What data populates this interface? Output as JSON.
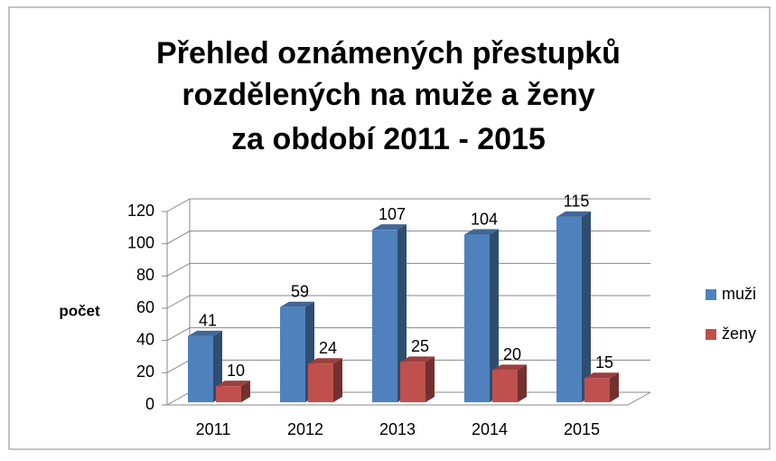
{
  "chart_data": {
    "type": "bar3d",
    "title": [
      "Přehled oznámených přestupků",
      "rozdělených na muže a ženy",
      "za období  2011 - 2015"
    ],
    "y_label": "počet",
    "categories": [
      "2011",
      "2012",
      "2013",
      "2014",
      "2015"
    ],
    "series": [
      {
        "name": "muži",
        "color": "#4f81bd",
        "values": [
          41,
          59,
          107,
          104,
          115
        ]
      },
      {
        "name": "ženy",
        "color": "#c0504d",
        "values": [
          10,
          24,
          25,
          20,
          15
        ]
      }
    ],
    "ylim": [
      0,
      120
    ],
    "yticks": [
      0,
      20,
      40,
      60,
      80,
      100,
      120
    ],
    "grid": true,
    "legend": "right"
  }
}
